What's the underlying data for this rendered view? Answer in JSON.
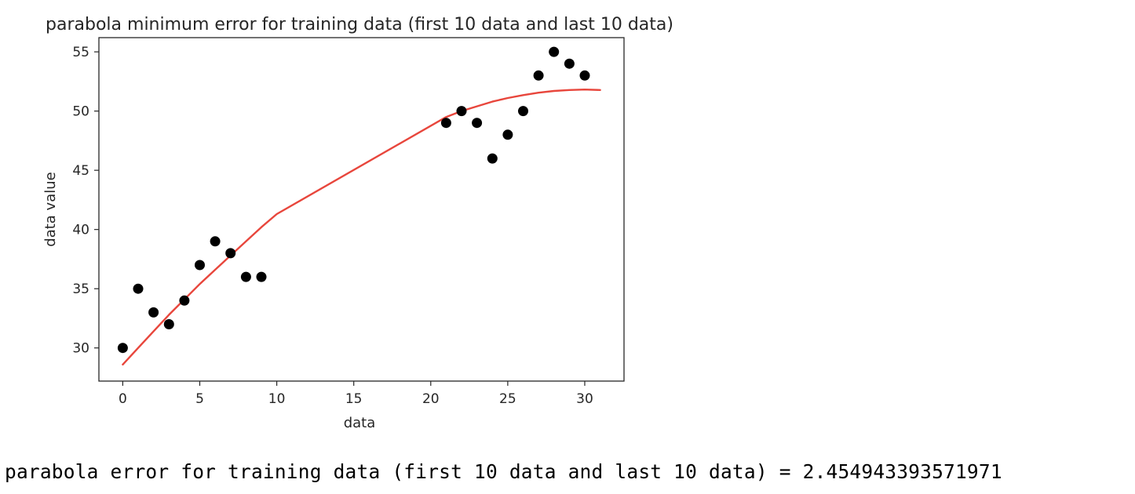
{
  "chart_data": {
    "type": "scatter",
    "title": "parabola minimum error for training data (first 10 data and last 10 data)",
    "xlabel": "data",
    "ylabel": "data value",
    "xlim": [
      -1.55,
      32.55
    ],
    "ylim": [
      27.2,
      56.2
    ],
    "x_ticks": [
      0,
      5,
      10,
      15,
      20,
      25,
      30
    ],
    "y_ticks": [
      30,
      35,
      40,
      45,
      50,
      55
    ],
    "grid": false,
    "legend": "none",
    "series": [
      {
        "type": "scatter",
        "color": "#000000",
        "x": [
          0,
          1,
          2,
          3,
          4,
          5,
          6,
          7,
          8,
          9,
          21,
          22,
          23,
          24,
          25,
          26,
          27,
          28,
          29,
          30
        ],
        "y": [
          30,
          35,
          33,
          32,
          34,
          37,
          39,
          38,
          36,
          36,
          49,
          50,
          49,
          46,
          48,
          50,
          53,
          55,
          54,
          53
        ]
      },
      {
        "type": "line",
        "color": "#e8463c",
        "x": [
          0,
          1,
          2,
          3,
          4,
          5,
          6,
          7,
          8,
          9,
          10,
          21,
          22,
          23,
          24,
          25,
          26,
          27,
          28,
          29,
          30,
          31
        ],
        "y": [
          28.6,
          30.0,
          31.4,
          32.8,
          34.1,
          35.4,
          36.6,
          37.8,
          39.0,
          40.2,
          41.3,
          49.5,
          50.0,
          50.4,
          50.8,
          51.1,
          51.35,
          51.55,
          51.7,
          51.78,
          51.82,
          51.78
        ]
      }
    ]
  },
  "output": {
    "text": "parabola error for training data (first 10 data and last 10 data) = 2.454943393571971"
  }
}
